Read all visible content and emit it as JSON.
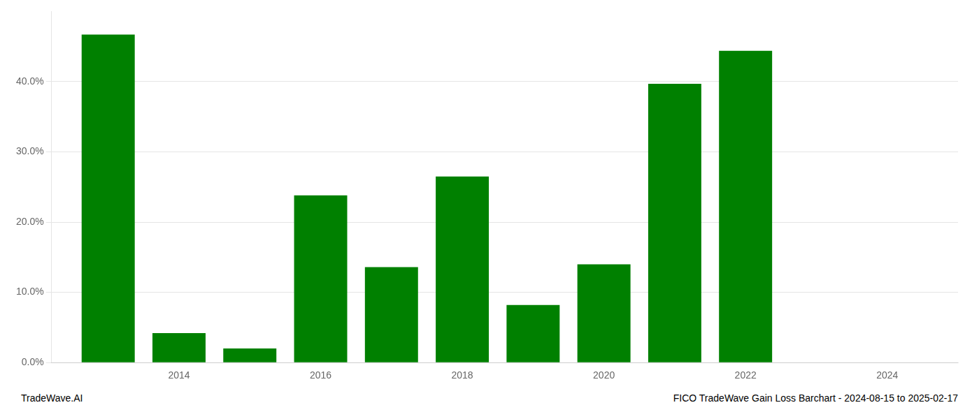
{
  "chart_data": {
    "type": "bar",
    "x": [
      2013,
      2014,
      2015,
      2016,
      2017,
      2018,
      2019,
      2020,
      2021,
      2022
    ],
    "values": [
      0.467,
      0.042,
      0.02,
      0.238,
      0.136,
      0.265,
      0.082,
      0.14,
      0.397,
      0.444
    ],
    "color": "#008000",
    "xlim": [
      2012.2,
      2025.0
    ],
    "xticks": [
      2014,
      2016,
      2018,
      2020,
      2022,
      2024
    ],
    "ylim": [
      0,
      0.5
    ],
    "yticks": [
      {
        "value": 0.0,
        "label": "0.0%"
      },
      {
        "value": 0.1,
        "label": "10.0%"
      },
      {
        "value": 0.2,
        "label": "20.0%"
      },
      {
        "value": 0.3,
        "label": "30.0%"
      },
      {
        "value": 0.4,
        "label": "40.0%"
      }
    ],
    "grid": true,
    "annotations": [
      "TradeWave.AI",
      "FICO TradeWave Gain Loss Barchart - 2024-08-15 to 2025-02-17"
    ]
  }
}
